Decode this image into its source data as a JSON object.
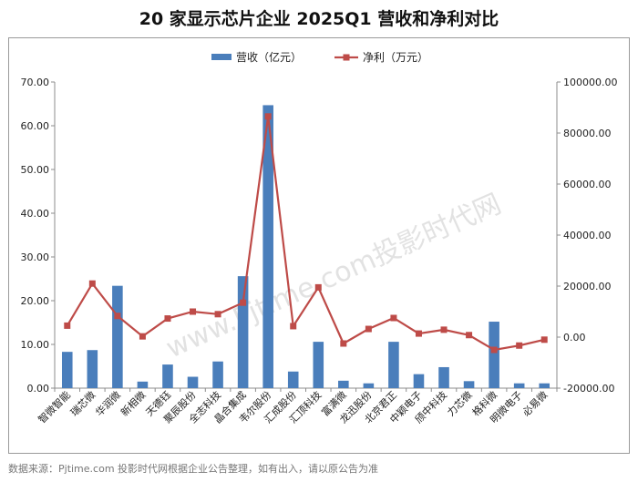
{
  "chart_data": {
    "type": "bar",
    "title": "20 家显示芯片企业 2025Q1 营收和净利对比",
    "categories": [
      "智微智能",
      "瑞芯微",
      "华润微",
      "新相微",
      "天德钰",
      "聚辰股份",
      "全志科技",
      "晶合集成",
      "韦尔股份",
      "汇成股份",
      "汇顶科技",
      "富满微",
      "龙迅股份",
      "北京君正",
      "中颖电子",
      "颀中科技",
      "力芯微",
      "格科微",
      "明微电子",
      "必易微"
    ],
    "series": [
      {
        "name": "营收（亿元）",
        "type": "bar",
        "axis": "left",
        "color": "#4a7ebb",
        "values": [
          8.3,
          8.7,
          23.4,
          1.5,
          5.4,
          2.6,
          6.1,
          25.6,
          64.7,
          3.8,
          10.6,
          1.7,
          1.1,
          10.6,
          3.2,
          4.8,
          1.6,
          15.2,
          1.1,
          1.1
        ]
      },
      {
        "name": "净利（万元）",
        "type": "line",
        "axis": "right",
        "color": "#be4b48",
        "values": [
          4500,
          21000,
          8300,
          300,
          7300,
          10000,
          9000,
          13500,
          86500,
          4300,
          19500,
          -2500,
          3200,
          7500,
          1400,
          2900,
          800,
          -5000,
          -3300,
          -1000
        ]
      }
    ],
    "y_left": {
      "min": 0,
      "max": 70,
      "step": 10,
      "tick_labels": [
        "0.00",
        "10.00",
        "20.00",
        "30.00",
        "40.00",
        "50.00",
        "60.00",
        "70.00"
      ]
    },
    "y_right": {
      "min": -20000,
      "max": 100000,
      "step": 20000,
      "tick_labels": [
        "-20000.00",
        "0.00",
        "20000.00",
        "40000.00",
        "60000.00",
        "80000.00",
        "100000.00"
      ]
    },
    "legend_position": "top-center",
    "grid": false,
    "watermark": "www.Pjtime.com投影时代网"
  },
  "source_note": "数据来源：Pjtime.com 投影时代网根据企业公告整理，如有出入，请以原公告为准"
}
